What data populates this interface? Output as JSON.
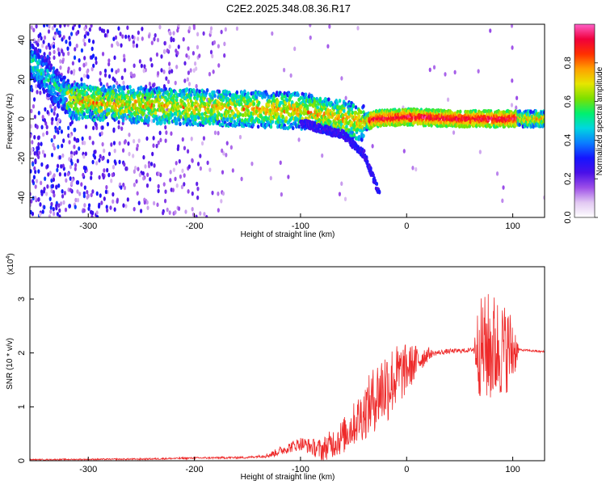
{
  "title": "C2E2.2025.348.08.36.R17",
  "chart_data": [
    {
      "type": "heatmap",
      "xlabel": "Height of straight line (km)",
      "ylabel": "Frequency (Hz)",
      "xlim": [
        -355,
        130
      ],
      "ylim": [
        -50,
        48
      ],
      "xticks": [
        -300,
        -200,
        -100,
        0,
        100
      ],
      "yticks": [
        -40,
        -20,
        0,
        20,
        40
      ],
      "colorbar": {
        "label": "Normalized spectral amplitude",
        "range": [
          0,
          1
        ],
        "ticks": [
          "0.0",
          "0.2",
          "0.4",
          "0.6",
          "0.8"
        ],
        "tick_values": [
          0.0,
          0.2,
          0.4,
          0.6,
          0.8
        ],
        "colors": [
          "#ffffff",
          "#e2c8f2",
          "#9d4fe8",
          "#4a10e8",
          "#1515ff",
          "#0a7dff",
          "#00d7e0",
          "#00f070",
          "#7ce000",
          "#e6e600",
          "#ffa000",
          "#ff3000",
          "#f0003c",
          "#ff60c8"
        ]
      },
      "ridge": {
        "description_points": [
          {
            "x": -355,
            "y": 30
          },
          {
            "x": -330,
            "y": 16
          },
          {
            "x": -315,
            "y": 9
          },
          {
            "x": -250,
            "y": 7
          },
          {
            "x": -200,
            "y": 6
          },
          {
            "x": -150,
            "y": 5
          },
          {
            "x": -100,
            "y": 4
          },
          {
            "x": -60,
            "y": 0
          },
          {
            "x": -40,
            "y": -2
          },
          {
            "x": -30,
            "y": 0
          },
          {
            "x": 0,
            "y": 1
          },
          {
            "x": 50,
            "y": 0
          },
          {
            "x": 130,
            "y": 0
          }
        ],
        "lower_branch": [
          {
            "x": -100,
            "y": -2
          },
          {
            "x": -60,
            "y": -8
          },
          {
            "x": -40,
            "y": -18
          },
          {
            "x": -25,
            "y": -39
          }
        ],
        "peak_segment": [
          -35,
          105
        ]
      }
    },
    {
      "type": "line",
      "xlabel": "Height of straight line (km)",
      "ylabel": "SNR (10 * v/v)",
      "y_multiplier": "(x10",
      "y_multiplier_exp": "4",
      "y_multiplier_close": ")",
      "xlim": [
        -355,
        130
      ],
      "ylim": [
        0,
        3.6
      ],
      "xticks": [
        -300,
        -200,
        -100,
        0,
        100
      ],
      "yticks": [
        0,
        1,
        2,
        3
      ],
      "series": [
        {
          "color": "#ee2a2a",
          "trend": [
            {
              "x": -355,
              "y": 0.02
            },
            {
              "x": -250,
              "y": 0.03
            },
            {
              "x": -200,
              "y": 0.05
            },
            {
              "x": -150,
              "y": 0.06
            },
            {
              "x": -130,
              "y": 0.1
            },
            {
              "x": -110,
              "y": 0.25
            },
            {
              "x": -100,
              "y": 0.32
            },
            {
              "x": -80,
              "y": 0.2
            },
            {
              "x": -60,
              "y": 0.45
            },
            {
              "x": -40,
              "y": 0.9
            },
            {
              "x": -25,
              "y": 1.3
            },
            {
              "x": -10,
              "y": 1.55
            },
            {
              "x": 0,
              "y": 1.7
            },
            {
              "x": 10,
              "y": 1.85
            },
            {
              "x": 20,
              "y": 1.98
            },
            {
              "x": 40,
              "y": 2.03
            },
            {
              "x": 60,
              "y": 2.05
            },
            {
              "x": 66,
              "y": 2.1
            },
            {
              "x": 105,
              "y": 2.06
            },
            {
              "x": 130,
              "y": 2.02
            }
          ],
          "noise_amplitude": [
            {
              "x": -355,
              "a": 0.01
            },
            {
              "x": -140,
              "a": 0.02
            },
            {
              "x": -120,
              "a": 0.08
            },
            {
              "x": -90,
              "a": 0.15
            },
            {
              "x": -50,
              "a": 0.4
            },
            {
              "x": -20,
              "a": 0.75
            },
            {
              "x": -5,
              "a": 0.55
            },
            {
              "x": 10,
              "a": 0.3
            },
            {
              "x": 25,
              "a": 0.05
            },
            {
              "x": 62,
              "a": 0.04
            },
            {
              "x": 68,
              "a": 0.9
            },
            {
              "x": 80,
              "a": 1.1
            },
            {
              "x": 100,
              "a": 0.7
            },
            {
              "x": 106,
              "a": 0.02
            },
            {
              "x": 130,
              "a": 0.02
            }
          ]
        }
      ]
    }
  ]
}
